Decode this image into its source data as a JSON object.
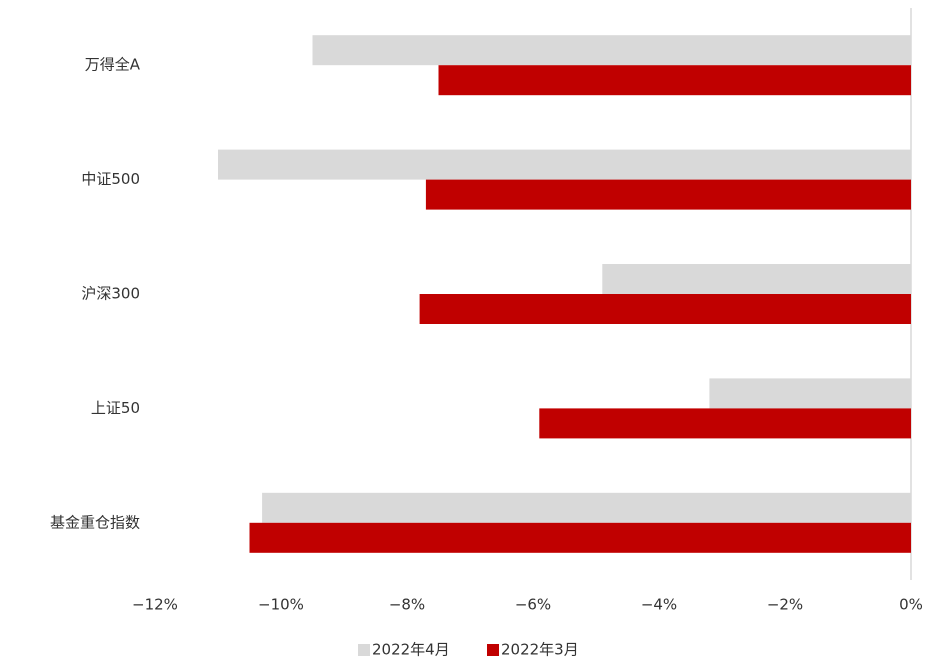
{
  "chart_data": {
    "type": "barh",
    "categories": [
      "万得全A",
      "中证500",
      "沪深300",
      "上证50",
      "基金重仓指数"
    ],
    "series": [
      {
        "name": "2022年4月",
        "color": "#d9d9d9",
        "values": [
          -9.5,
          -11.0,
          -4.9,
          -3.2,
          -10.3
        ]
      },
      {
        "name": "2022年3月",
        "color": "#c00000",
        "values": [
          -7.5,
          -7.7,
          -7.8,
          -5.9,
          -10.5
        ]
      }
    ],
    "xlim": [
      -12,
      0
    ],
    "xticks": [
      {
        "value": -12,
        "label": "−12%"
      },
      {
        "value": -10,
        "label": "−10%"
      },
      {
        "value": -8,
        "label": "−8%"
      },
      {
        "value": -6,
        "label": "−6%"
      },
      {
        "value": -4,
        "label": "−4%"
      },
      {
        "value": -2,
        "label": "−2%"
      },
      {
        "value": 0,
        "label": "0%"
      }
    ],
    "legend": "bottom"
  }
}
